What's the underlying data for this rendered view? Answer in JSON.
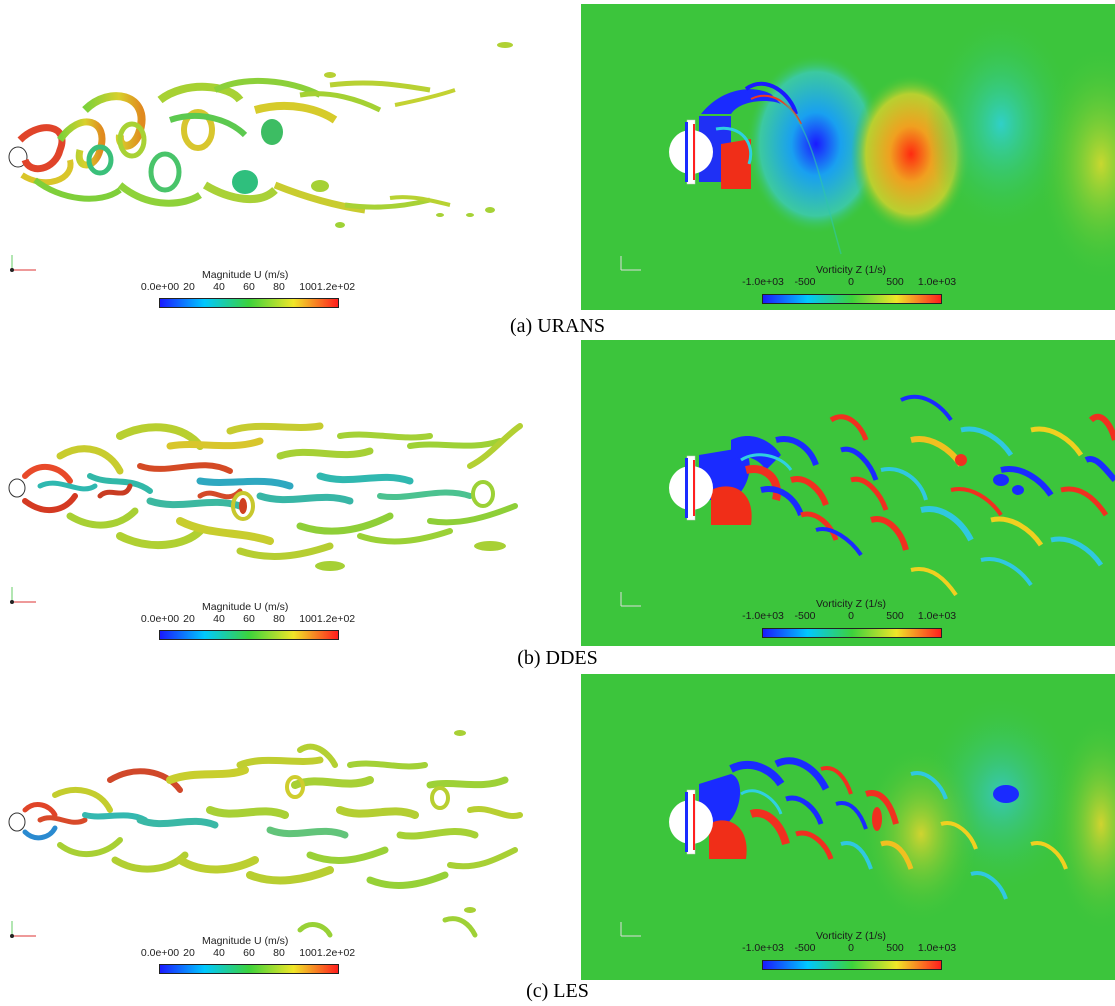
{
  "rows": [
    {
      "caption": "(a) URANS",
      "velocity_legend": {
        "title": "Magnitude U (m/s)",
        "ticks": [
          "0.0e+00",
          "20",
          "40",
          "60",
          "80",
          "100",
          "1.2e+02"
        ]
      },
      "vorticity_legend": {
        "title": "Vorticity Z (1/s)",
        "ticks": [
          "-1.0e+03",
          "-500",
          "0",
          "500",
          "1.0e+03"
        ]
      }
    },
    {
      "caption": "(b) DDES",
      "velocity_legend": {
        "title": "Magnitude U (m/s)",
        "ticks": [
          "0.0e+00",
          "20",
          "40",
          "60",
          "80",
          "100",
          "1.2e+02"
        ]
      },
      "vorticity_legend": {
        "title": "Vorticity Z (1/s)",
        "ticks": [
          "-1.0e+03",
          "-500",
          "0",
          "500",
          "1.0e+03"
        ]
      }
    },
    {
      "caption": "(c) LES",
      "velocity_legend": {
        "title": "Magnitude U (m/s)",
        "ticks": [
          "0.0e+00",
          "20",
          "40",
          "60",
          "80",
          "100",
          "1.2e+02"
        ]
      },
      "vorticity_legend": {
        "title": "Vorticity Z (1/s)",
        "ticks": [
          "-1.0e+03",
          "-500",
          "0",
          "500",
          "1.0e+03"
        ]
      }
    }
  ],
  "colors": {
    "background_field": "#3cc53c",
    "colormap": [
      "#1a1aff",
      "#00c8ff",
      "#3cd23c",
      "#f0e628",
      "#ff1e1e"
    ]
  }
}
